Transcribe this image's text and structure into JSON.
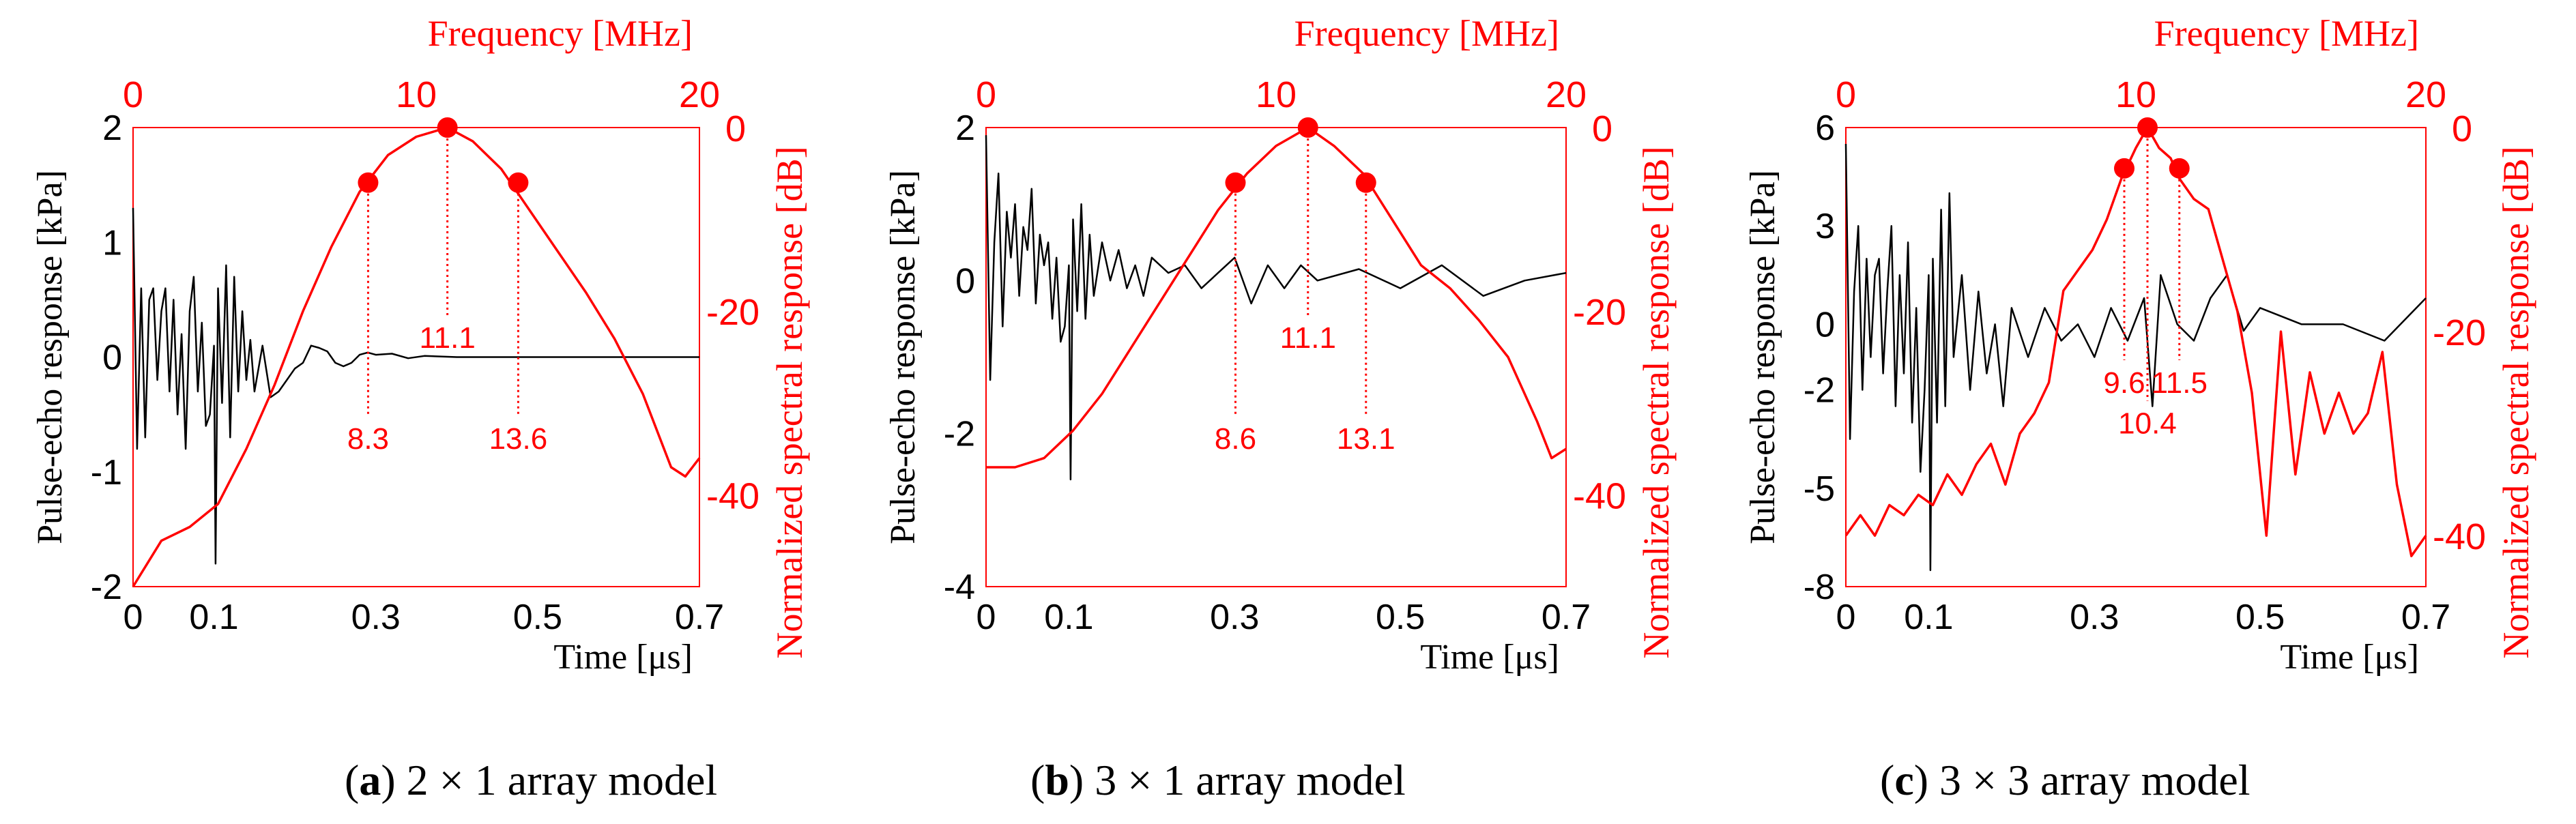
{
  "colors": {
    "signal": "#000000",
    "spectrum": "#ff0000",
    "frame": "#ff0000"
  },
  "chart_data": [
    {
      "type": "line",
      "caption": {
        "prefix": "(",
        "letter": "a",
        "rest": ") 2 × 1 array model"
      },
      "xlabel": "Time [μs]",
      "ylabel_left": "Pulse-echo response [kPa]",
      "ylabel_right": "Normalized spectral response [dB]",
      "x2label": "Frequency [MHz]",
      "xlim": [
        0,
        0.7
      ],
      "xticks": [
        "0",
        "0.1",
        "0.3",
        "0.5",
        "0.7"
      ],
      "ylim_left": [
        -2,
        2
      ],
      "yticks_left": [
        "2",
        "1",
        "0",
        "-1",
        "-2"
      ],
      "x2lim": [
        0,
        20
      ],
      "x2ticks": [
        "0",
        "10",
        "20"
      ],
      "ylim_right": [
        -50,
        0
      ],
      "yticks_right": [
        "0",
        "-20",
        "-40"
      ],
      "spectrum": {
        "freq": [
          0,
          1,
          2,
          3,
          4,
          5,
          6,
          7,
          8,
          9,
          10,
          11.1,
          12,
          13,
          14,
          15,
          16,
          17,
          18,
          19,
          19.5,
          20
        ],
        "db": [
          -50,
          -45,
          -43.5,
          -41,
          -35,
          -28,
          -20,
          -13,
          -7,
          -3,
          -1,
          0,
          -1.5,
          -4.5,
          -9,
          -13.5,
          -18,
          -23,
          -29,
          -37,
          -38,
          -36
        ]
      },
      "markers": {
        "low": 8.3,
        "center": 11.1,
        "high": 13.6,
        "marker_db": -6
      },
      "marker_labels": [
        "8.3",
        "11.1",
        "13.6"
      ],
      "signal": {
        "t": [
          0,
          0.005,
          0.01,
          0.015,
          0.02,
          0.025,
          0.03,
          0.035,
          0.04,
          0.045,
          0.05,
          0.055,
          0.06,
          0.065,
          0.07,
          0.075,
          0.08,
          0.085,
          0.09,
          0.095,
          0.1,
          0.102,
          0.105,
          0.11,
          0.115,
          0.12,
          0.125,
          0.13,
          0.135,
          0.14,
          0.145,
          0.15,
          0.16,
          0.17,
          0.18,
          0.19,
          0.2,
          0.21,
          0.22,
          0.23,
          0.24,
          0.25,
          0.26,
          0.27,
          0.28,
          0.29,
          0.3,
          0.32,
          0.34,
          0.36,
          0.4,
          0.5,
          0.6,
          0.7
        ],
        "p": [
          1.3,
          -0.8,
          0.6,
          -0.7,
          0.5,
          0.6,
          -0.2,
          0.4,
          0.6,
          -0.3,
          0.5,
          -0.5,
          0.2,
          -0.8,
          0.4,
          0.7,
          -0.3,
          0.3,
          -0.6,
          -0.5,
          0.1,
          -1.8,
          0.6,
          -0.4,
          0.8,
          -0.7,
          0.7,
          -0.3,
          0.4,
          -0.2,
          0.15,
          -0.3,
          0.1,
          -0.35,
          -0.3,
          -0.2,
          -0.1,
          -0.05,
          0.1,
          0.08,
          0.05,
          -0.05,
          -0.08,
          -0.05,
          0.02,
          0.04,
          0.02,
          0.03,
          -0.01,
          0.01,
          0.0,
          0.0,
          0.0,
          0.0
        ]
      }
    },
    {
      "type": "line",
      "caption": {
        "prefix": "(",
        "letter": "b",
        "rest": ") 3 × 1 array model"
      },
      "xlabel": "Time [μs]",
      "ylabel_left": "Pulse-echo response [kPa]",
      "ylabel_right": "Normalized spectral response [dB]",
      "x2label": "Frequency [MHz]",
      "xlim": [
        0,
        0.7
      ],
      "xticks": [
        "0",
        "0.1",
        "0.3",
        "0.5",
        "0.7"
      ],
      "ylim_left": [
        -4,
        2
      ],
      "yticks_left": [
        "2",
        "0",
        "-2",
        "-4"
      ],
      "x2lim": [
        0,
        20
      ],
      "x2ticks": [
        "0",
        "10",
        "20"
      ],
      "ylim_right": [
        -50,
        0
      ],
      "yticks_right": [
        "0",
        "-20",
        "-40"
      ],
      "spectrum": {
        "freq": [
          0,
          1,
          2,
          3,
          4,
          5,
          6,
          7,
          8,
          9,
          10,
          11.1,
          12,
          13,
          14,
          15,
          16,
          17,
          18,
          19,
          19.5,
          20
        ],
        "db": [
          -37,
          -37,
          -36,
          -33,
          -29,
          -24,
          -19,
          -14,
          -9,
          -5,
          -2,
          0,
          -2,
          -5,
          -10,
          -15,
          -17.5,
          -21,
          -25,
          -32,
          -36,
          -35
        ]
      },
      "markers": {
        "low": 8.6,
        "center": 11.1,
        "high": 13.1,
        "marker_db": -6
      },
      "marker_labels": [
        "8.6",
        "11.1",
        "13.1"
      ],
      "signal": {
        "t": [
          0,
          0.005,
          0.01,
          0.015,
          0.02,
          0.025,
          0.03,
          0.035,
          0.04,
          0.045,
          0.05,
          0.055,
          0.06,
          0.065,
          0.07,
          0.075,
          0.08,
          0.085,
          0.09,
          0.095,
          0.1,
          0.102,
          0.105,
          0.11,
          0.115,
          0.12,
          0.125,
          0.13,
          0.14,
          0.15,
          0.16,
          0.17,
          0.18,
          0.19,
          0.2,
          0.22,
          0.24,
          0.26,
          0.28,
          0.3,
          0.32,
          0.34,
          0.36,
          0.38,
          0.4,
          0.45,
          0.5,
          0.55,
          0.6,
          0.65,
          0.7
        ],
        "p": [
          1.9,
          -1.3,
          0.5,
          1.4,
          -0.6,
          0.9,
          0.3,
          1.0,
          -0.2,
          0.7,
          0.4,
          1.2,
          -0.3,
          0.6,
          0.2,
          0.5,
          -0.5,
          0.3,
          -0.8,
          -0.6,
          0.2,
          -2.6,
          0.8,
          -0.4,
          1.0,
          -0.5,
          0.6,
          -0.2,
          0.5,
          0.0,
          0.4,
          -0.1,
          0.2,
          -0.2,
          0.3,
          0.1,
          0.2,
          -0.1,
          0.1,
          0.3,
          -0.3,
          0.2,
          -0.1,
          0.2,
          0.0,
          0.15,
          -0.1,
          0.2,
          -0.2,
          0.0,
          0.1
        ]
      }
    },
    {
      "type": "line",
      "caption": {
        "prefix": "(",
        "letter": "c",
        "rest": ") 3 × 3 array model"
      },
      "xlabel": "Time [μs]",
      "ylabel_left": "Pulse-echo response [kPa]",
      "ylabel_right": "Normalized spectral response [dB]",
      "x2label": "Frequency [MHz]",
      "xlim": [
        0,
        0.7
      ],
      "xticks": [
        "0",
        "0.1",
        "0.3",
        "0.5",
        "0.7"
      ],
      "ylim_left": [
        -8,
        6
      ],
      "yticks_left": [
        "6",
        "3",
        "0",
        "-2",
        "-5",
        "-8"
      ],
      "x2lim": [
        0,
        20
      ],
      "x2ticks": [
        "0",
        "10",
        "20"
      ],
      "ylim_right": [
        -45,
        0
      ],
      "yticks_right": [
        "0",
        "-20",
        "-40"
      ],
      "spectrum": {
        "freq": [
          0,
          0.5,
          1,
          1.5,
          2,
          2.5,
          3,
          3.5,
          4,
          4.5,
          5,
          5.5,
          6,
          6.5,
          7,
          7.5,
          8,
          8.5,
          9,
          9.5,
          10,
          10.4,
          10.8,
          11.2,
          11.5,
          12,
          12.5,
          13,
          13.5,
          14,
          14.5,
          15,
          15.5,
          16,
          16.5,
          17,
          17.5,
          18,
          18.5,
          19,
          19.5,
          20
        ],
        "db": [
          -40,
          -38,
          -40,
          -37,
          -38,
          -36,
          -37,
          -34,
          -36,
          -33,
          -31,
          -35,
          -30,
          -28,
          -25,
          -16,
          -14,
          -12,
          -9,
          -5,
          -2,
          0,
          -2,
          -3,
          -5,
          -7,
          -8,
          -13,
          -18,
          -26,
          -40,
          -20,
          -34,
          -24,
          -30,
          -26,
          -30,
          -28,
          -22,
          -35,
          -42,
          -40
        ]
      },
      "markers": {
        "low": 9.6,
        "center": 10.4,
        "high": 11.5,
        "marker_db": -4
      },
      "marker_labels": [
        "9.6",
        "10.4",
        "11.5"
      ],
      "signal": {
        "t": [
          0,
          0.005,
          0.01,
          0.015,
          0.02,
          0.025,
          0.03,
          0.035,
          0.04,
          0.045,
          0.05,
          0.055,
          0.06,
          0.065,
          0.07,
          0.075,
          0.08,
          0.085,
          0.09,
          0.095,
          0.1,
          0.102,
          0.105,
          0.11,
          0.115,
          0.12,
          0.125,
          0.13,
          0.14,
          0.15,
          0.16,
          0.17,
          0.18,
          0.19,
          0.2,
          0.22,
          0.24,
          0.26,
          0.28,
          0.3,
          0.32,
          0.34,
          0.36,
          0.37,
          0.38,
          0.4,
          0.42,
          0.44,
          0.46,
          0.48,
          0.5,
          0.55,
          0.6,
          0.65,
          0.7
        ],
        "p": [
          5.5,
          -3.5,
          1.0,
          3.0,
          -2.0,
          2.0,
          -1.0,
          1.5,
          2.0,
          -1.5,
          1.0,
          3.0,
          -2.5,
          1.5,
          -1.5,
          2.5,
          -3.0,
          0.5,
          -4.5,
          -2.0,
          1.5,
          -7.5,
          2.0,
          -3.0,
          3.5,
          -2.5,
          4.0,
          -1.0,
          1.5,
          -2.0,
          1.0,
          -1.5,
          0.0,
          -2.5,
          0.5,
          -1.0,
          0.5,
          -0.5,
          0.0,
          -1.0,
          0.5,
          -0.5,
          0.8,
          -2.5,
          1.5,
          0.0,
          -0.5,
          0.8,
          1.5,
          -0.2,
          0.5,
          0.0,
          0.0,
          -0.5,
          0.8
        ]
      }
    }
  ]
}
